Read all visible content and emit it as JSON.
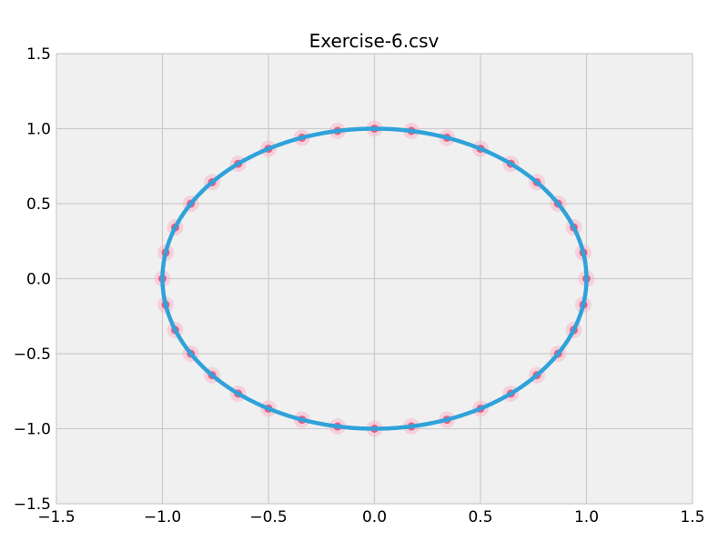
{
  "chart_data": {
    "type": "scatter",
    "title": "Exercise-6.csv",
    "xlabel": "",
    "ylabel": "",
    "xlim": [
      -1.5,
      1.5
    ],
    "ylim": [
      -1.5,
      1.5
    ],
    "x_ticks": [
      -1.5,
      -1.0,
      -0.5,
      0.0,
      0.5,
      1.0,
      1.5
    ],
    "y_ticks": [
      -1.5,
      -1.0,
      -0.5,
      0.0,
      0.5,
      1.0,
      1.5
    ],
    "x_tick_labels": [
      "−1.5",
      "−1.0",
      "−0.5",
      "0.0",
      "0.5",
      "1.0",
      "1.5"
    ],
    "y_tick_labels": [
      "−1.5",
      "−1.0",
      "−0.5",
      "0.0",
      "0.5",
      "1.0",
      "1.5"
    ],
    "grid": true,
    "legend": "none",
    "series": [
      {
        "kind": "scatter",
        "color": "#e8517a",
        "marker": "circle",
        "points": [
          [
            1.0,
            0.0
          ],
          [
            0.985,
            0.174
          ],
          [
            0.94,
            0.342
          ],
          [
            0.866,
            0.5
          ],
          [
            0.766,
            0.643
          ],
          [
            0.643,
            0.766
          ],
          [
            0.5,
            0.866
          ],
          [
            0.342,
            0.94
          ],
          [
            0.174,
            0.985
          ],
          [
            0.0,
            1.0
          ],
          [
            -0.174,
            0.985
          ],
          [
            -0.342,
            0.94
          ],
          [
            -0.5,
            0.866
          ],
          [
            -0.643,
            0.766
          ],
          [
            -0.766,
            0.643
          ],
          [
            -0.866,
            0.5
          ],
          [
            -0.94,
            0.342
          ],
          [
            -0.985,
            0.174
          ],
          [
            -1.0,
            0.0
          ],
          [
            -0.985,
            -0.174
          ],
          [
            -0.94,
            -0.342
          ],
          [
            -0.866,
            -0.5
          ],
          [
            -0.766,
            -0.643
          ],
          [
            -0.643,
            -0.766
          ],
          [
            -0.5,
            -0.866
          ],
          [
            -0.342,
            -0.94
          ],
          [
            -0.174,
            -0.985
          ],
          [
            0.0,
            -1.0
          ],
          [
            0.174,
            -0.985
          ],
          [
            0.342,
            -0.94
          ],
          [
            0.5,
            -0.866
          ],
          [
            0.643,
            -0.766
          ],
          [
            0.766,
            -0.643
          ],
          [
            0.866,
            -0.5
          ],
          [
            0.94,
            -0.342
          ],
          [
            0.985,
            -0.174
          ]
        ]
      },
      {
        "kind": "line",
        "color": "#30a2da",
        "shape": "unit circle",
        "center": [
          0.0,
          0.0
        ],
        "radius": 1.0
      }
    ]
  },
  "colors": {
    "plot_background": "#f0f0f0",
    "grid": "#cbcbcb",
    "scatter": "#e8517a",
    "scatter_halo": "#f7b8ca",
    "line": "#30a2da"
  }
}
